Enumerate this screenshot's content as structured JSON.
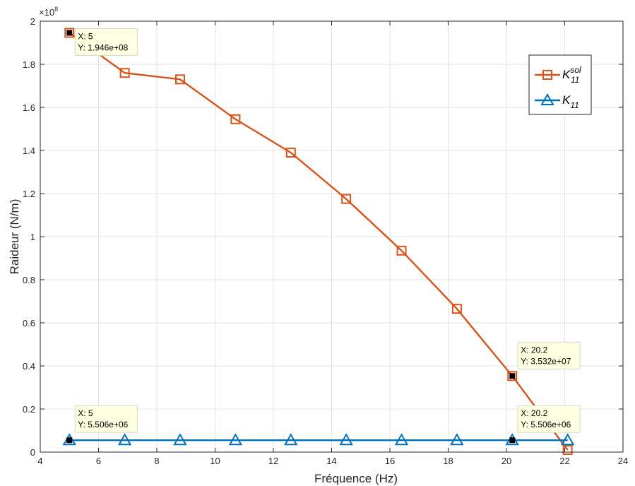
{
  "chart_data": {
    "type": "line",
    "xlabel": "Fréquence (Hz)",
    "ylabel": "Raideur (N/m)",
    "exponent_label": "×10",
    "exponent_power": "8",
    "xlim": [
      4,
      24
    ],
    "ylim": [
      0,
      2
    ],
    "xticks": [
      4,
      6,
      8,
      10,
      12,
      14,
      16,
      18,
      20,
      22,
      24
    ],
    "yticks": [
      0,
      0.2,
      0.4,
      0.6,
      0.8,
      1,
      1.2,
      1.4,
      1.6,
      1.8,
      2
    ],
    "ytick_labels": [
      "0",
      "0.2",
      "0.4",
      "0.6",
      "0.8",
      "1",
      "1.2",
      "1.4",
      "1.6",
      "1.8",
      "2"
    ],
    "grid": true,
    "legend_position": "top-right",
    "series": [
      {
        "name": "K_11^sol",
        "legend_main": "K",
        "legend_sub": "11",
        "legend_sup": "sol",
        "color": "#d95319",
        "marker": "square",
        "x": [
          5,
          6.9,
          8.8,
          10.7,
          12.6,
          14.5,
          16.4,
          18.3,
          20.2,
          22.1
        ],
        "y": [
          1.946,
          1.76,
          1.73,
          1.545,
          1.39,
          1.175,
          0.935,
          0.665,
          0.3532,
          0.01
        ]
      },
      {
        "name": "K_11",
        "legend_main": "K",
        "legend_sub": "11",
        "legend_sup": "",
        "color": "#0072bd",
        "marker": "triangle",
        "x": [
          5,
          6.9,
          8.8,
          10.7,
          12.6,
          14.5,
          16.4,
          18.3,
          20.2,
          22.1
        ],
        "y": [
          0.05506,
          0.05506,
          0.05506,
          0.05506,
          0.05506,
          0.05506,
          0.05506,
          0.05506,
          0.05506,
          0.05506
        ]
      }
    ],
    "datatips": [
      {
        "x": 5,
        "y": 1.946,
        "line1": "X: 5",
        "line2": "Y: 1.946e+08"
      },
      {
        "x": 20.2,
        "y": 0.3532,
        "line1": "X: 20.2",
        "line2": "Y: 3.532e+07"
      },
      {
        "x": 5,
        "y": 0.05506,
        "line1": "X: 5",
        "line2": "Y: 5.506e+06"
      },
      {
        "x": 20.2,
        "y": 0.05506,
        "line1": "X: 20.2",
        "line2": "Y: 5.506e+06"
      }
    ]
  }
}
